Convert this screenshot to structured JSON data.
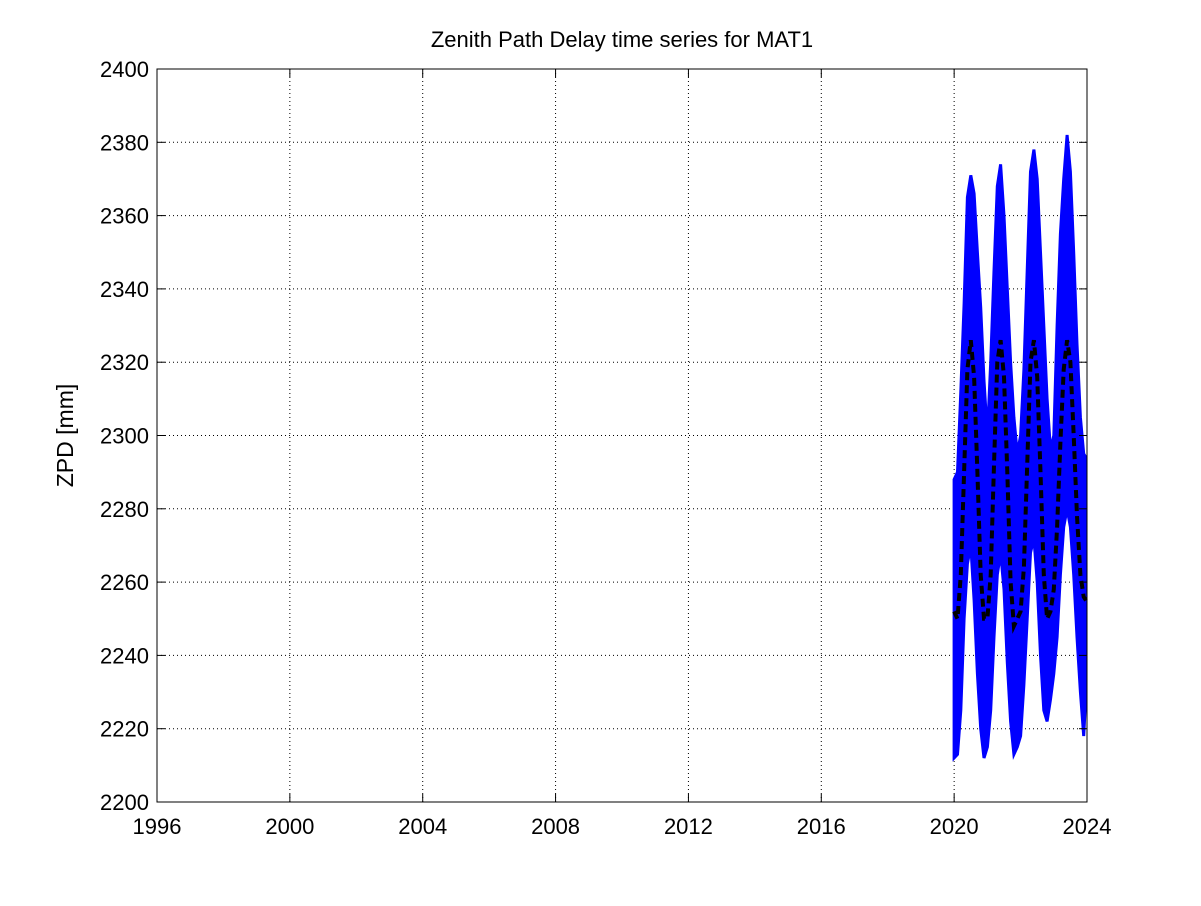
{
  "chart_data": {
    "type": "line",
    "title": "Zenith Path Delay time series for MAT1",
    "xlabel": "",
    "ylabel": "ZPD [mm]",
    "xlim": [
      1996,
      2024
    ],
    "ylim": [
      2200,
      2400
    ],
    "xticks": [
      "1996",
      "2000",
      "2004",
      "2008",
      "2012",
      "2016",
      "2020",
      "2024"
    ],
    "yticks": [
      "2200",
      "2220",
      "2240",
      "2260",
      "2280",
      "2300",
      "2320",
      "2340",
      "2360",
      "2380",
      "2400"
    ],
    "grid": true,
    "legend": "none",
    "colors": {
      "observed": "#0000ff",
      "smoothed": "#000000"
    },
    "series": [
      {
        "style": "solid-blue-band",
        "x": [
          2020.0,
          2020.1,
          2020.2,
          2020.3,
          2020.4,
          2020.5,
          2020.6,
          2020.7,
          2020.8,
          2020.9,
          2021.0,
          2021.1,
          2021.2,
          2021.3,
          2021.4,
          2021.5,
          2021.6,
          2021.7,
          2021.8,
          2021.9,
          2022.0,
          2022.1,
          2022.2,
          2022.3,
          2022.4,
          2022.5,
          2022.6,
          2022.7,
          2022.8,
          2022.9,
          2023.0,
          2023.1,
          2023.2,
          2023.3,
          2023.4,
          2023.5,
          2023.6,
          2023.7,
          2023.8,
          2023.9,
          2023.97
        ],
        "y_min": [
          2212,
          2213,
          2225,
          2250,
          2265,
          2270,
          2255,
          2235,
          2220,
          2212,
          2215,
          2225,
          2245,
          2262,
          2268,
          2258,
          2238,
          2222,
          2213,
          2215,
          2218,
          2232,
          2250,
          2268,
          2272,
          2260,
          2240,
          2225,
          2222,
          2228,
          2235,
          2245,
          2262,
          2275,
          2280,
          2275,
          2262,
          2245,
          2230,
          2218,
          2230
        ],
        "y_max": [
          2288,
          2290,
          2312,
          2336,
          2365,
          2371,
          2366,
          2350,
          2335,
          2315,
          2300,
          2320,
          2345,
          2368,
          2374,
          2360,
          2340,
          2320,
          2305,
          2295,
          2300,
          2318,
          2345,
          2372,
          2378,
          2370,
          2350,
          2330,
          2310,
          2296,
          2300,
          2330,
          2355,
          2370,
          2382,
          2372,
          2350,
          2325,
          2305,
          2295,
          2294
        ]
      },
      {
        "style": "dashed-black-smooth",
        "x": [
          2020.0,
          2020.1,
          2020.2,
          2020.3,
          2020.4,
          2020.5,
          2020.6,
          2020.7,
          2020.8,
          2020.9,
          2021.0,
          2021.1,
          2021.2,
          2021.3,
          2021.4,
          2021.5,
          2021.6,
          2021.7,
          2021.8,
          2021.9,
          2022.0,
          2022.1,
          2022.2,
          2022.3,
          2022.4,
          2022.5,
          2022.6,
          2022.7,
          2022.8,
          2022.9,
          2023.0,
          2023.1,
          2023.2,
          2023.3,
          2023.4,
          2023.5,
          2023.6,
          2023.7,
          2023.8,
          2023.9,
          2023.97
        ],
        "y": [
          2252,
          2250,
          2262,
          2290,
          2318,
          2326,
          2316,
          2290,
          2262,
          2250,
          2250,
          2262,
          2292,
          2320,
          2326,
          2316,
          2290,
          2260,
          2248,
          2250,
          2252,
          2264,
          2292,
          2320,
          2326,
          2316,
          2290,
          2262,
          2250,
          2252,
          2258,
          2275,
          2298,
          2318,
          2326,
          2320,
          2300,
          2278,
          2262,
          2256,
          2255
        ]
      }
    ]
  }
}
